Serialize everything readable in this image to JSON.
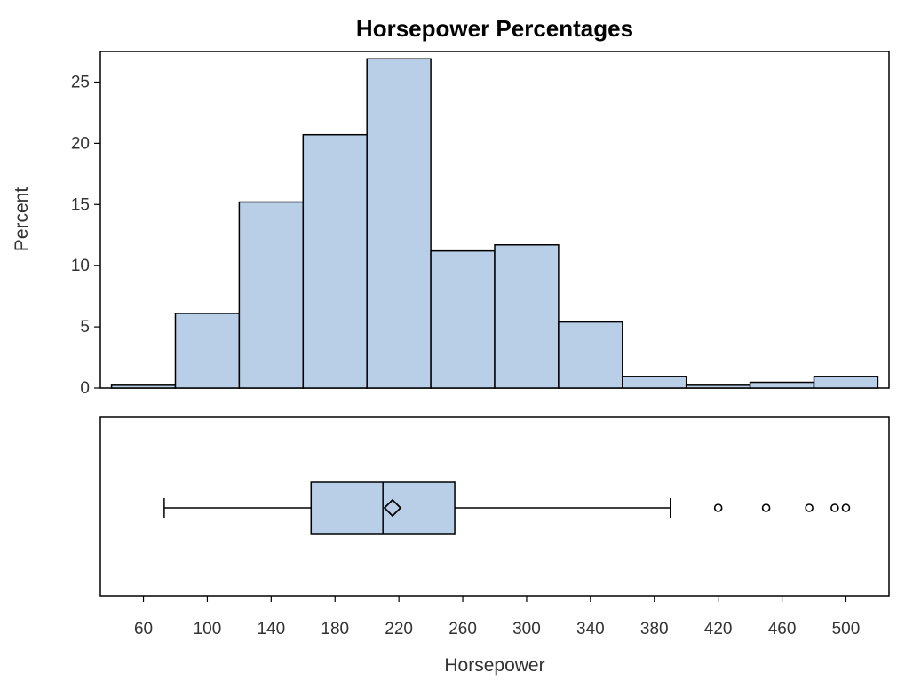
{
  "chart_data": {
    "type": "histogram",
    "title": "Horsepower Percentages",
    "xlabel": "Horsepower",
    "ylabel": "Percent",
    "colors": {
      "fill": "#B9CEE7",
      "stroke": "#000000"
    },
    "xlim": [
      33,
      527
    ],
    "ylim": [
      0,
      27.5
    ],
    "x_ticks": [
      60,
      100,
      140,
      180,
      220,
      260,
      300,
      340,
      380,
      420,
      460,
      500
    ],
    "y_ticks": [
      0,
      5,
      10,
      15,
      20,
      25
    ],
    "bins": [
      {
        "start": 40,
        "end": 80,
        "percent": 0.23
      },
      {
        "start": 80,
        "end": 120,
        "percent": 6.1
      },
      {
        "start": 120,
        "end": 160,
        "percent": 15.2
      },
      {
        "start": 160,
        "end": 200,
        "percent": 20.7
      },
      {
        "start": 200,
        "end": 240,
        "percent": 26.9
      },
      {
        "start": 240,
        "end": 280,
        "percent": 11.2
      },
      {
        "start": 280,
        "end": 320,
        "percent": 11.7
      },
      {
        "start": 320,
        "end": 360,
        "percent": 5.4
      },
      {
        "start": 360,
        "end": 400,
        "percent": 0.93
      },
      {
        "start": 400,
        "end": 440,
        "percent": 0.23
      },
      {
        "start": 440,
        "end": 480,
        "percent": 0.47
      },
      {
        "start": 480,
        "end": 520,
        "percent": 0.93
      }
    ],
    "boxplot": {
      "whisker_low": 73,
      "q1": 165,
      "median": 210,
      "mean": 216,
      "q3": 255,
      "whisker_high": 390,
      "outliers": [
        420,
        450,
        477,
        493,
        500
      ]
    }
  }
}
